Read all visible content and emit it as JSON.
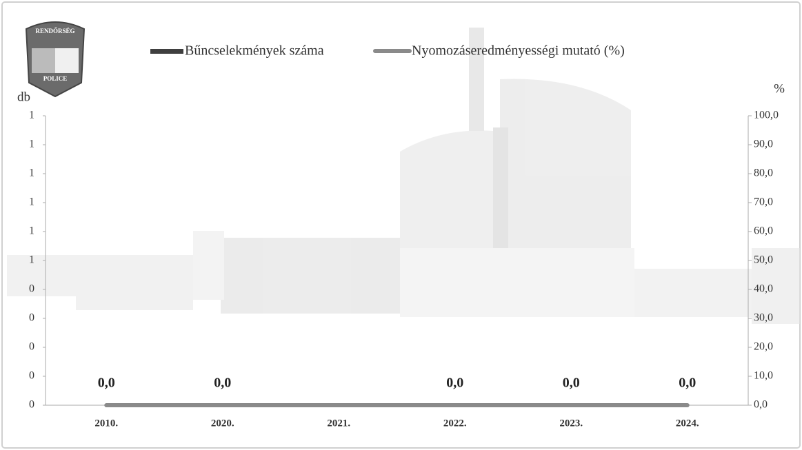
{
  "logo": {
    "top": "RENDŐRSÉG",
    "bottom": "POLICE"
  },
  "chart_data": {
    "type": "bar-line",
    "y_label": "db",
    "y2_label": "%",
    "categories": [
      "2010.",
      "2020.",
      "2021.",
      "2022.",
      "2023.",
      "2024."
    ],
    "series": [
      {
        "name": "Bűncselekmények száma",
        "color": "#3f3f3f",
        "type": "bar",
        "values": [
          0,
          0,
          0,
          0,
          0,
          0
        ]
      },
      {
        "name": "Nyomozáseredményességi mutató (%)",
        "color": "#8a8a8a",
        "type": "line",
        "axis": "y2",
        "values": [
          0,
          0,
          0,
          0,
          0,
          0
        ],
        "value_labels": [
          "0,0",
          "0,0",
          null,
          "0,0",
          "0,0",
          "0,0"
        ]
      }
    ],
    "ylim": [
      0,
      1
    ],
    "yticks": [
      {
        "value": 0,
        "label": "0"
      },
      {
        "value": 0.1,
        "label": "0"
      },
      {
        "value": 0.2,
        "label": "0"
      },
      {
        "value": 0.3,
        "label": "0"
      },
      {
        "value": 0.4,
        "label": "0"
      },
      {
        "value": 0.5,
        "label": "1"
      },
      {
        "value": 0.6,
        "label": "1"
      },
      {
        "value": 0.7,
        "label": "1"
      },
      {
        "value": 0.8,
        "label": "1"
      },
      {
        "value": 0.9,
        "label": "1"
      },
      {
        "value": 1,
        "label": "1"
      }
    ],
    "y2lim": [
      0,
      100
    ],
    "y2ticks": [
      {
        "value": 0,
        "label": "0,0"
      },
      {
        "value": 10,
        "label": "10,0"
      },
      {
        "value": 20,
        "label": "20,0"
      },
      {
        "value": 30,
        "label": "30,0"
      },
      {
        "value": 40,
        "label": "40,0"
      },
      {
        "value": 50,
        "label": "50,0"
      },
      {
        "value": 60,
        "label": "60,0"
      },
      {
        "value": 70,
        "label": "70,0"
      },
      {
        "value": 80,
        "label": "80,0"
      },
      {
        "value": 90,
        "label": "90,0"
      },
      {
        "value": 100,
        "label": "100,0"
      }
    ],
    "legend": "top"
  }
}
